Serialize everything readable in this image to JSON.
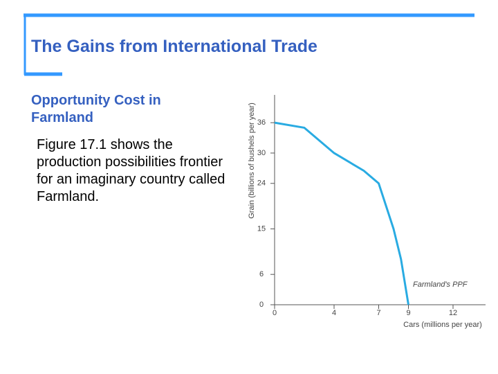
{
  "slide": {
    "title": "The Gains from International Trade",
    "subtitle": "Opportunity Cost in Farmland",
    "body": "Figure 17.1 shows the production possibilities frontier for an imaginary country called Farmland."
  },
  "chart_data": {
    "type": "line",
    "x": [
      0,
      2,
      4,
      6,
      7,
      8,
      8.5,
      9
    ],
    "series": [
      {
        "name": "Farmland's PPF",
        "color": "#29abe2",
        "values": [
          36,
          35,
          30,
          26.5,
          24,
          15,
          9,
          0
        ]
      }
    ],
    "xlim": [
      0,
      14
    ],
    "ylim": [
      0,
      41.5
    ],
    "xticks": [
      0,
      4,
      7,
      9,
      12
    ],
    "yticks": [
      0,
      6,
      15,
      24,
      30,
      36
    ],
    "xlabel": "Cars (millions per year)",
    "ylabel": "Grain (billions of bushels per year)"
  }
}
